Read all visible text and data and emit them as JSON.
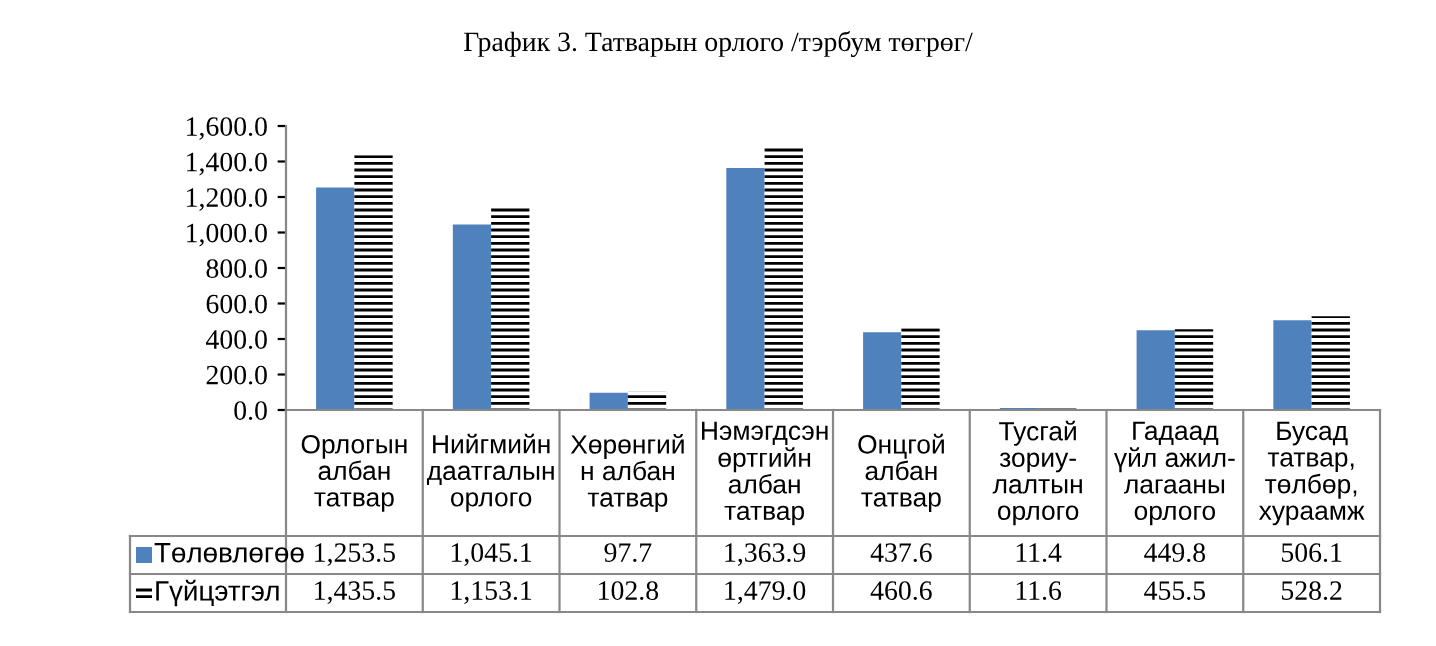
{
  "chart_data": {
    "type": "bar",
    "title": "График 3. Татварын орлого /тэрбум төгрөг/",
    "categories": [
      "Орлогын\nалбан\nтатвар",
      "Нийгмийн\nдаатгалын\nорлого",
      "Хөрөнгий\nн албан\nтатвар",
      "Нэмэгдсэн\nөртгийн\nалбан\nтатвар",
      "Онцгой\nалбан\nтатвар",
      "Тусгай\nзориу-\nлалтын\nорлого",
      "Гадаад\nүйл ажил-\nлагааны\nорлого",
      "Бусад\nтатвар,\nтөлбөр,\nхураамж"
    ],
    "series": [
      {
        "name": "Төлөвлөгөө",
        "color": "#4f81bd",
        "values": [
          1253.5,
          1045.1,
          97.7,
          1363.9,
          437.6,
          11.4,
          449.8,
          506.1
        ],
        "value_labels": [
          "1,253.5",
          "1,045.1",
          "97.7",
          "1,363.9",
          "437.6",
          "11.4",
          "449.8",
          "506.1"
        ]
      },
      {
        "name": "Гүйцэтгэл",
        "color": "#000000",
        "values": [
          1435.5,
          1153.1,
          102.8,
          1479.0,
          460.6,
          11.6,
          455.5,
          528.2
        ],
        "value_labels": [
          "1,435.5",
          "1,153.1",
          "102.8",
          "1,479.0",
          "460.6",
          "11.6",
          "455.5",
          "528.2"
        ]
      }
    ],
    "ylim": [
      0,
      1600
    ],
    "yticks": [
      {
        "value": 0,
        "label": "0.0"
      },
      {
        "value": 200,
        "label": "200.0"
      },
      {
        "value": 400,
        "label": "400.0"
      },
      {
        "value": 600,
        "label": "600.0"
      },
      {
        "value": 800,
        "label": "800.0"
      },
      {
        "value": 1000,
        "label": "1,000.0"
      },
      {
        "value": 1200,
        "label": "1,200.0"
      },
      {
        "value": 1400,
        "label": "1,400.0"
      },
      {
        "value": 1600,
        "label": "1,600.0"
      }
    ],
    "grid": false,
    "legend": "bottom"
  }
}
